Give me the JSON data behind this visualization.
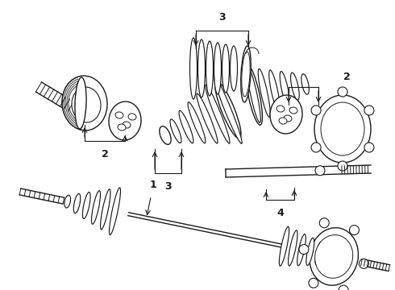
{
  "background_color": "#ffffff",
  "line_color": "#1a1a1a",
  "lw": 1.0,
  "figsize": [
    4.9,
    3.6
  ],
  "dpi": 100
}
